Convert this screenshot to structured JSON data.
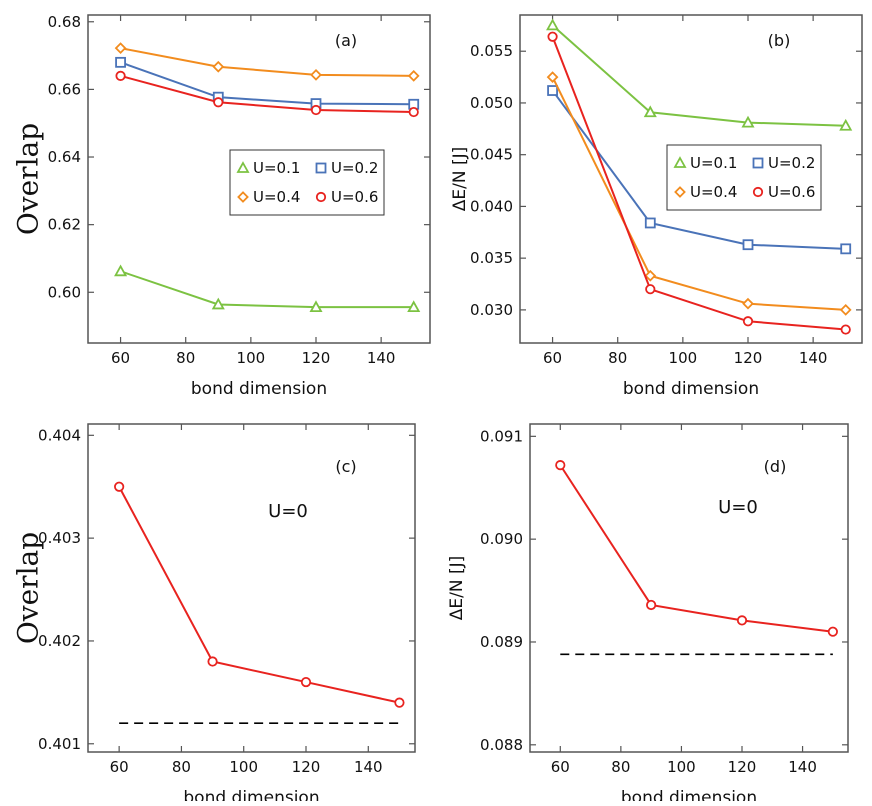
{
  "chart_data": [
    {
      "id": "a",
      "type": "line",
      "panel_label": "(a)",
      "xlabel": "bond dimension",
      "ylabel": "Overlap",
      "xlim": [
        50,
        155
      ],
      "ylim": [
        0.585,
        0.682
      ],
      "xticks": [
        60,
        80,
        100,
        120,
        140
      ],
      "xtick_labels": [
        "60",
        "80",
        "100",
        "120",
        "140"
      ],
      "yticks": [
        0.6,
        0.62,
        0.64,
        0.66,
        0.68
      ],
      "ytick_labels": [
        "0.60",
        "0.62",
        "0.64",
        "0.66",
        "0.68"
      ],
      "x": [
        60,
        90,
        120,
        150
      ],
      "series": [
        {
          "name": "U=0.1",
          "color": "#7cc242",
          "marker": "triangle",
          "values": [
            0.6062,
            0.5964,
            0.5956,
            0.5956
          ]
        },
        {
          "name": "U=0.2",
          "color": "#4a73b8",
          "marker": "square",
          "values": [
            0.668,
            0.6577,
            0.6558,
            0.6556
          ]
        },
        {
          "name": "U=0.4",
          "color": "#f28c1e",
          "marker": "diamond",
          "values": [
            0.6722,
            0.6667,
            0.6643,
            0.664
          ]
        },
        {
          "name": "U=0.6",
          "color": "#e8231f",
          "marker": "circle",
          "values": [
            0.664,
            0.6562,
            0.6539,
            0.6533
          ]
        }
      ],
      "legend": {
        "placement": "center-right",
        "order": [
          "U=0.1",
          "U=0.2",
          "U=0.4",
          "U=0.6"
        ]
      }
    },
    {
      "id": "b",
      "type": "line",
      "panel_label": "(b)",
      "xlabel": "bond dimension",
      "ylabel": "ΔE/N [J]",
      "xlim": [
        50,
        155
      ],
      "ylim": [
        0.0268,
        0.0585
      ],
      "xticks": [
        60,
        80,
        100,
        120,
        140
      ],
      "xtick_labels": [
        "60",
        "80",
        "100",
        "120",
        "140"
      ],
      "yticks": [
        0.03,
        0.035,
        0.04,
        0.045,
        0.05,
        0.055
      ],
      "ytick_labels": [
        "0.030",
        "0.035",
        "0.040",
        "0.045",
        "0.050",
        "0.055"
      ],
      "x": [
        60,
        90,
        120,
        150
      ],
      "series": [
        {
          "name": "U=0.1",
          "color": "#7cc242",
          "marker": "triangle",
          "values": [
            0.0575,
            0.0491,
            0.0481,
            0.0478
          ]
        },
        {
          "name": "U=0.2",
          "color": "#4a73b8",
          "marker": "square",
          "values": [
            0.0512,
            0.0384,
            0.0363,
            0.0359
          ]
        },
        {
          "name": "U=0.4",
          "color": "#f28c1e",
          "marker": "diamond",
          "values": [
            0.0525,
            0.0333,
            0.0306,
            0.03
          ]
        },
        {
          "name": "U=0.6",
          "color": "#e8231f",
          "marker": "circle",
          "values": [
            0.0564,
            0.032,
            0.0289,
            0.0281
          ]
        }
      ],
      "legend": {
        "placement": "center-right",
        "order": [
          "U=0.1",
          "U=0.2",
          "U=0.4",
          "U=0.6"
        ]
      }
    },
    {
      "id": "c",
      "type": "line",
      "panel_label": "(c)",
      "annotation": "U=0",
      "xlabel": "bond dimension",
      "ylabel": "Overlap",
      "xlim": [
        50,
        155
      ],
      "ylim": [
        0.40092,
        0.40411
      ],
      "xticks": [
        60,
        80,
        100,
        120,
        140
      ],
      "xtick_labels": [
        "60",
        "80",
        "100",
        "120",
        "140"
      ],
      "yticks": [
        0.401,
        0.402,
        0.403,
        0.404
      ],
      "ytick_labels": [
        "0.401",
        "0.402",
        "0.403",
        "0.404"
      ],
      "x": [
        60,
        90,
        120,
        150
      ],
      "series": [
        {
          "name": "U=0",
          "color": "#e8231f",
          "marker": "circle",
          "values": [
            0.4035,
            0.4018,
            0.4016,
            0.4014
          ]
        }
      ],
      "reference_line": {
        "y": 0.4012,
        "x_range": [
          60,
          150
        ],
        "style": "dashed",
        "color": "#000000"
      }
    },
    {
      "id": "d",
      "type": "line",
      "panel_label": "(d)",
      "annotation": "U=0",
      "xlabel": "bond dimension",
      "ylabel": "ΔE/N [J]",
      "xlim": [
        50,
        155
      ],
      "ylim": [
        0.08793,
        0.09112
      ],
      "xticks": [
        60,
        80,
        100,
        120,
        140
      ],
      "xtick_labels": [
        "60",
        "80",
        "100",
        "120",
        "140"
      ],
      "yticks": [
        0.088,
        0.089,
        0.09,
        0.091
      ],
      "ytick_labels": [
        "0.088",
        "0.089",
        "0.090",
        "0.091"
      ],
      "x": [
        60,
        90,
        120,
        150
      ],
      "series": [
        {
          "name": "U=0",
          "color": "#e8231f",
          "marker": "circle",
          "values": [
            0.09072,
            0.08936,
            0.08921,
            0.0891
          ]
        }
      ],
      "reference_line": {
        "y": 0.08888,
        "x_range": [
          60,
          150
        ],
        "style": "dashed",
        "color": "#000000"
      }
    }
  ]
}
